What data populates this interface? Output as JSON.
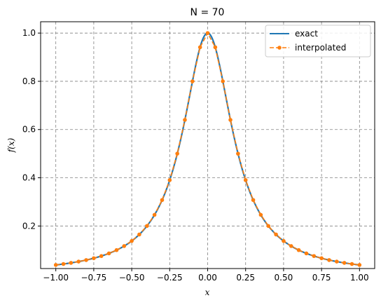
{
  "chart_data": {
    "type": "line",
    "title": "N = 70",
    "xlabel": "x",
    "ylabel": "f(x)",
    "xlim": [
      -1.1,
      1.1
    ],
    "ylim": [
      0.0236,
      1.047
    ],
    "x_ticks": [
      -1.0,
      -0.75,
      -0.5,
      -0.25,
      0.0,
      0.25,
      0.5,
      0.75,
      1.0
    ],
    "x_tick_labels": [
      "−1.00",
      "−0.75",
      "−0.50",
      "−0.25",
      "0.00",
      "0.25",
      "0.50",
      "0.75",
      "1.00"
    ],
    "y_ticks": [
      0.2,
      0.4,
      0.6,
      0.8,
      1.0
    ],
    "y_tick_labels": [
      "0.2",
      "0.4",
      "0.6",
      "0.8",
      "1.0"
    ],
    "grid": true,
    "legend_position": "top-right",
    "function": "1/(1+25x^2)",
    "series": [
      {
        "name": "exact",
        "style": "solid",
        "color": "#1f77b4",
        "x": [
          -1.0,
          -0.95,
          -0.9,
          -0.85,
          -0.8,
          -0.75,
          -0.7,
          -0.65,
          -0.6,
          -0.55,
          -0.5,
          -0.45,
          -0.4,
          -0.35,
          -0.3,
          -0.25,
          -0.2,
          -0.15,
          -0.1,
          -0.05,
          0.0,
          0.05,
          0.1,
          0.15,
          0.2,
          0.25,
          0.3,
          0.35,
          0.4,
          0.45,
          0.5,
          0.55,
          0.6,
          0.65,
          0.7,
          0.75,
          0.8,
          0.85,
          0.9,
          0.95,
          1.0
        ],
        "y": [
          0.0385,
          0.0425,
          0.0471,
          0.0525,
          0.0588,
          0.0664,
          0.0755,
          0.0865,
          0.1,
          0.1168,
          0.1379,
          0.1649,
          0.2,
          0.2462,
          0.3077,
          0.3902,
          0.5,
          0.64,
          0.8,
          0.9412,
          1.0,
          0.9412,
          0.8,
          0.64,
          0.5,
          0.3902,
          0.3077,
          0.2462,
          0.2,
          0.1649,
          0.1379,
          0.1168,
          0.1,
          0.0865,
          0.0755,
          0.0664,
          0.0588,
          0.0525,
          0.0471,
          0.0425,
          0.0385
        ]
      },
      {
        "name": "interpolated",
        "style": "dashed",
        "marker": "circle",
        "color": "#ff7f0e",
        "x": [
          -1.0,
          -0.95,
          -0.9,
          -0.85,
          -0.8,
          -0.75,
          -0.7,
          -0.65,
          -0.6,
          -0.55,
          -0.5,
          -0.45,
          -0.4,
          -0.35,
          -0.3,
          -0.25,
          -0.2,
          -0.15,
          -0.1,
          -0.05,
          0.0,
          0.05,
          0.1,
          0.15,
          0.2,
          0.25,
          0.3,
          0.35,
          0.4,
          0.45,
          0.5,
          0.55,
          0.6,
          0.65,
          0.7,
          0.75,
          0.8,
          0.85,
          0.9,
          0.95,
          1.0
        ],
        "y": [
          0.0385,
          0.0425,
          0.0471,
          0.0525,
          0.0588,
          0.0664,
          0.0755,
          0.0865,
          0.1,
          0.1168,
          0.1379,
          0.1649,
          0.2,
          0.2462,
          0.3077,
          0.3902,
          0.5,
          0.64,
          0.8,
          0.9412,
          1.0,
          0.9412,
          0.8,
          0.64,
          0.5,
          0.3902,
          0.3077,
          0.2462,
          0.2,
          0.1649,
          0.1379,
          0.1168,
          0.1,
          0.0865,
          0.0755,
          0.0664,
          0.0588,
          0.0525,
          0.0471,
          0.0425,
          0.0385
        ]
      }
    ]
  }
}
